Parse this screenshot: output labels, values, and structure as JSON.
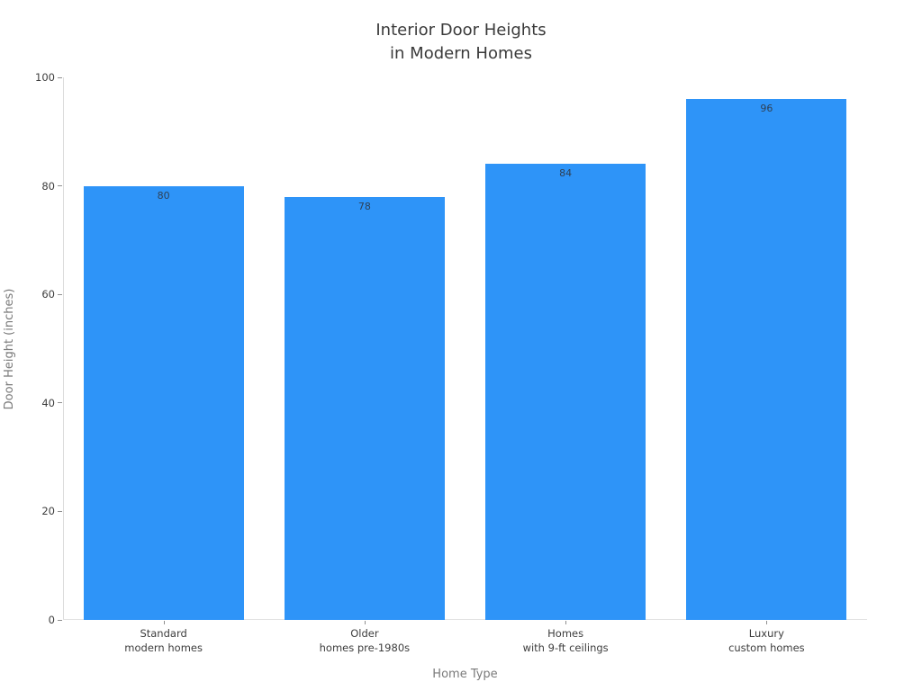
{
  "chart_data": {
    "type": "bar",
    "title": "Interior Door Heights\nin Modern Homes",
    "title_lines": [
      "Interior Door Heights",
      "in Modern Homes"
    ],
    "categories": [
      "Standard\nmodern homes",
      "Older\nhomes pre-1980s",
      "Homes\nwith 9-ft ceilings",
      "Luxury\ncustom homes"
    ],
    "category_lines": [
      [
        "Standard",
        "modern homes"
      ],
      [
        "Older",
        "homes pre-1980s"
      ],
      [
        "Homes",
        "with 9-ft ceilings"
      ],
      [
        "Luxury",
        "custom homes"
      ]
    ],
    "values": [
      80,
      78,
      84,
      96
    ],
    "bar_labels": [
      "80",
      "78",
      "84",
      "96"
    ],
    "xlabel": "Home Type",
    "ylabel": "Door Height (inches)",
    "ylim": [
      0,
      100
    ],
    "yticks": [
      0,
      20,
      40,
      60,
      80,
      100
    ],
    "grid": false,
    "legend": "none",
    "bar_color": "#2e94f8",
    "bar_label_color": "#2f4156",
    "tick_label_color": "#3d3d3d",
    "axis_title_color": "#7a7a7a",
    "axis_line_color": "#dcdcdc",
    "title_color": "#3a3a3a"
  }
}
